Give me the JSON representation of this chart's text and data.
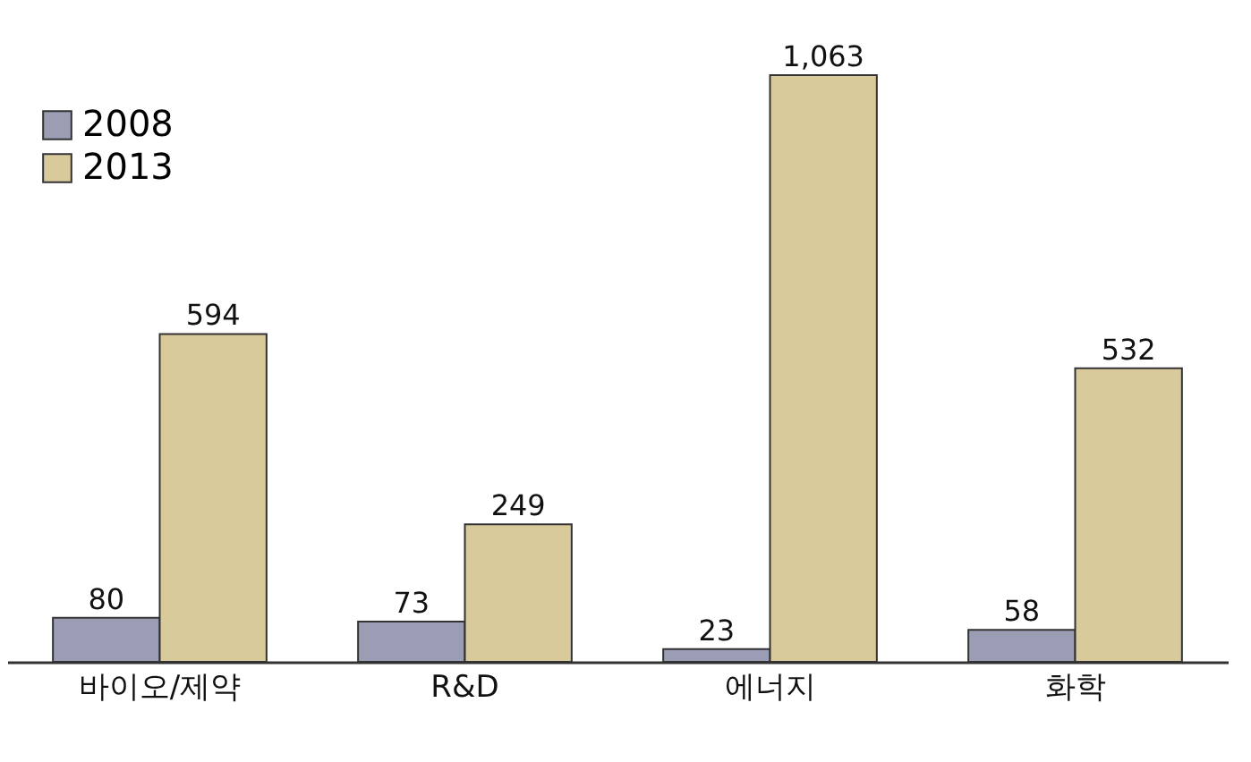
{
  "chart_data": {
    "type": "bar",
    "categories": [
      "바이오/제약",
      "R&D",
      "에너지",
      "화학"
    ],
    "series": [
      {
        "name": "2008",
        "color": "#9a9db3",
        "values": [
          80,
          73,
          23,
          58
        ],
        "value_labels": [
          "80",
          "73",
          "23",
          "58"
        ]
      },
      {
        "name": "2013",
        "color": "#d9ca9c",
        "values": [
          594,
          249,
          1063,
          532
        ],
        "value_labels": [
          "594",
          "249",
          "1,063",
          "532"
        ]
      }
    ],
    "legend": "top left"
  }
}
